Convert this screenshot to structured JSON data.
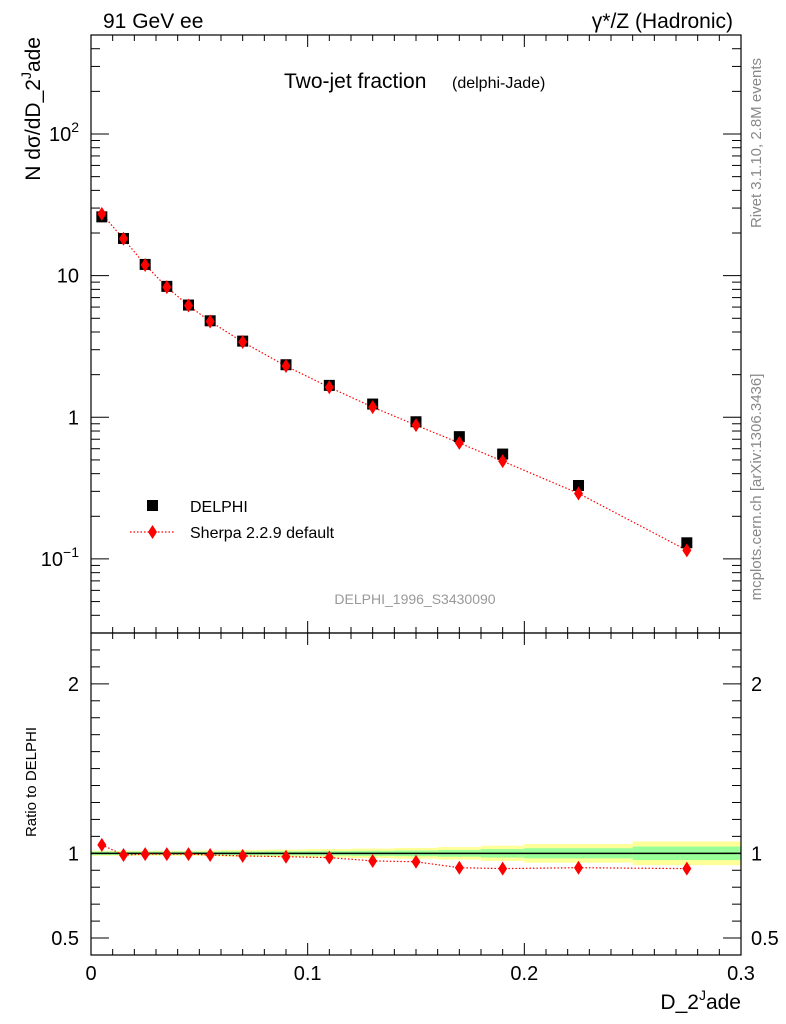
{
  "header": {
    "left": "91 GeV ee",
    "right": "γ*/Z (Hadronic)"
  },
  "side_text": {
    "rivet": "Rivet 3.1.10,  2.8M events",
    "mcplots": "mcplots.cern.ch [arXiv:1306.3436]"
  },
  "chart_data": {
    "type": "scatter",
    "title": "Two-jet fraction",
    "title_sub": "(delphi-Jade)",
    "analysis_id": "DELPHI_1996_S3430090",
    "xlabel_base": "D_2",
    "xlabel_sup": "J",
    "xlabel_tail": "ade",
    "ylabel_base": "N dσ/dD_2",
    "ylabel_sup": "J",
    "ylabel_tail": "ade",
    "ratio_ylabel": "Ratio to DELPHI",
    "xlim": [
      0,
      0.3
    ],
    "main_ylim": [
      0.03,
      500
    ],
    "main_yscale": "log",
    "ratio_ylim": [
      0.4,
      2.3
    ],
    "x_ticks": [
      "0",
      "0.1",
      "0.2",
      "0.3"
    ],
    "main_y_ticks": [
      "10^-1",
      "1",
      "10",
      "10^2"
    ],
    "ratio_y_ticks": [
      "0.5",
      "1",
      "2"
    ],
    "legend_position": "lower-left",
    "series": [
      {
        "name": "DELPHI",
        "style": "black-squares",
        "color": "#000000",
        "x": [
          0.005,
          0.015,
          0.025,
          0.035,
          0.045,
          0.055,
          0.07,
          0.09,
          0.11,
          0.13,
          0.15,
          0.17,
          0.19,
          0.225,
          0.275
        ],
        "y": [
          26.0,
          18.3,
          12.0,
          8.4,
          6.2,
          4.8,
          3.45,
          2.35,
          1.68,
          1.24,
          0.93,
          0.73,
          0.55,
          0.33,
          0.13
        ]
      },
      {
        "name": "Sherpa 2.2.9 default",
        "style": "red-diamonds-dotted",
        "color": "#ff0000",
        "x": [
          0.005,
          0.015,
          0.025,
          0.035,
          0.045,
          0.055,
          0.07,
          0.09,
          0.11,
          0.13,
          0.15,
          0.17,
          0.19,
          0.225,
          0.275
        ],
        "y": [
          27.3,
          18.2,
          11.9,
          8.3,
          6.15,
          4.75,
          3.4,
          2.3,
          1.63,
          1.18,
          0.88,
          0.66,
          0.49,
          0.29,
          0.115
        ]
      }
    ],
    "ratio": {
      "x": [
        0.005,
        0.015,
        0.025,
        0.035,
        0.045,
        0.055,
        0.07,
        0.09,
        0.11,
        0.13,
        0.15,
        0.17,
        0.19,
        0.225,
        0.275
      ],
      "values": [
        1.05,
        0.99,
        0.995,
        0.995,
        0.995,
        0.99,
        0.985,
        0.98,
        0.975,
        0.955,
        0.95,
        0.915,
        0.91,
        0.915,
        0.91
      ],
      "bands": [
        {
          "x0": 0.0,
          "x1": 0.01,
          "inner": 0.01,
          "outer": 0.015
        },
        {
          "x0": 0.01,
          "x1": 0.02,
          "inner": 0.01,
          "outer": 0.015
        },
        {
          "x0": 0.02,
          "x1": 0.03,
          "inner": 0.01,
          "outer": 0.015
        },
        {
          "x0": 0.03,
          "x1": 0.04,
          "inner": 0.01,
          "outer": 0.015
        },
        {
          "x0": 0.04,
          "x1": 0.05,
          "inner": 0.01,
          "outer": 0.015
        },
        {
          "x0": 0.05,
          "x1": 0.06,
          "inner": 0.01,
          "outer": 0.017
        },
        {
          "x0": 0.06,
          "x1": 0.08,
          "inner": 0.011,
          "outer": 0.02
        },
        {
          "x0": 0.08,
          "x1": 0.1,
          "inner": 0.012,
          "outer": 0.022
        },
        {
          "x0": 0.1,
          "x1": 0.12,
          "inner": 0.013,
          "outer": 0.025
        },
        {
          "x0": 0.12,
          "x1": 0.14,
          "inner": 0.015,
          "outer": 0.028
        },
        {
          "x0": 0.14,
          "x1": 0.16,
          "inner": 0.017,
          "outer": 0.032
        },
        {
          "x0": 0.16,
          "x1": 0.18,
          "inner": 0.02,
          "outer": 0.037
        },
        {
          "x0": 0.18,
          "x1": 0.2,
          "inner": 0.025,
          "outer": 0.045
        },
        {
          "x0": 0.2,
          "x1": 0.25,
          "inner": 0.03,
          "outer": 0.055
        },
        {
          "x0": 0.25,
          "x1": 0.3,
          "inner": 0.04,
          "outer": 0.07
        }
      ],
      "band_colors": {
        "inner": "#99ff99",
        "outer": "#ffff99"
      }
    }
  }
}
